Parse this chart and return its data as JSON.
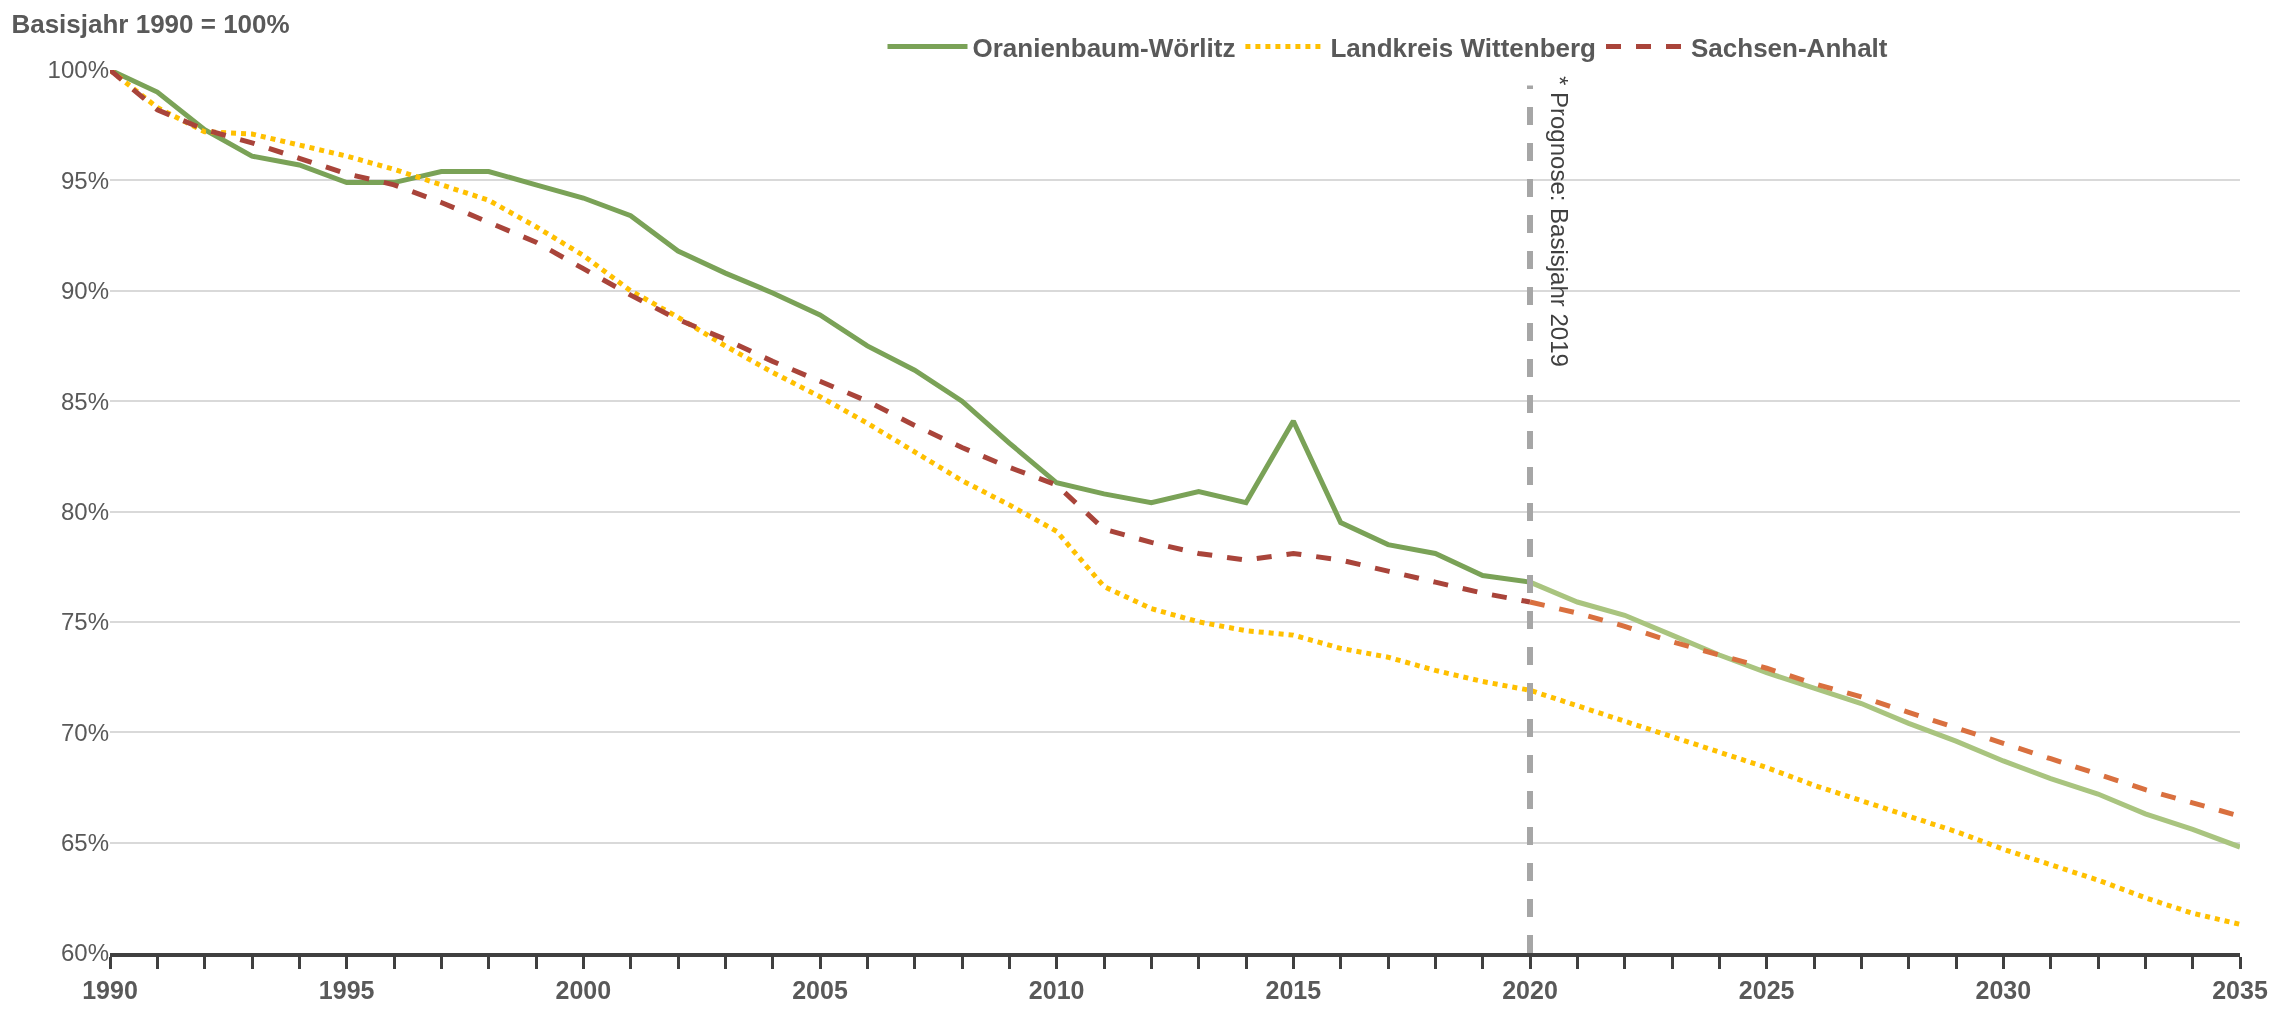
{
  "chart_data": {
    "type": "line",
    "title": "Basisjahr 1990 = 100%",
    "series": [
      {
        "name": "Oranienbaum-Wörlitz",
        "color": "#7aa257",
        "line_style": "solid",
        "x": [
          1990,
          1991,
          1992,
          1993,
          1994,
          1995,
          1996,
          1997,
          1998,
          1999,
          2000,
          2001,
          2002,
          2003,
          2004,
          2005,
          2006,
          2007,
          2008,
          2009,
          2010,
          2011,
          2012,
          2013,
          2014,
          2015,
          2016,
          2017,
          2018,
          2019,
          2020
        ],
        "values": [
          100,
          99.0,
          97.3,
          96.1,
          95.7,
          94.9,
          94.9,
          95.4,
          95.4,
          94.8,
          94.2,
          93.4,
          91.8,
          90.8,
          89.9,
          88.9,
          87.5,
          86.4,
          85.0,
          83.1,
          81.3,
          80.8,
          80.4,
          80.9,
          80.4,
          84.1,
          79.5,
          78.5,
          78.1,
          77.1,
          76.8
        ]
      },
      {
        "name": "Landkreis Wittenberg",
        "color": "#ffc000",
        "line_style": "dotted",
        "x": [
          1990,
          1991,
          1992,
          1993,
          1994,
          1995,
          1996,
          1997,
          1998,
          1999,
          2000,
          2001,
          2002,
          2003,
          2004,
          2005,
          2006,
          2007,
          2008,
          2009,
          2010,
          2011,
          2012,
          2013,
          2014,
          2015,
          2016,
          2017,
          2018,
          2019,
          2020,
          2021,
          2022,
          2023,
          2024,
          2025,
          2026,
          2027,
          2028,
          2029,
          2030,
          2031,
          2032,
          2033,
          2034,
          2035
        ],
        "values": [
          100,
          98.3,
          97.2,
          97.1,
          96.6,
          96.1,
          95.5,
          94.8,
          94.1,
          92.9,
          91.6,
          90.0,
          88.8,
          87.5,
          86.3,
          85.2,
          84.0,
          82.7,
          81.4,
          80.3,
          79.1,
          76.6,
          75.6,
          75.0,
          74.6,
          74.4,
          73.8,
          73.4,
          72.8,
          72.3,
          71.9,
          71.2,
          70.5,
          69.8,
          69.1,
          68.4,
          67.6,
          66.9,
          66.2,
          65.5,
          64.7,
          64.0,
          63.3,
          62.5,
          61.8,
          61.3
        ]
      },
      {
        "name": "Sachsen-Anhalt",
        "color": "#a9443a",
        "line_style": "dashed",
        "x": [
          1990,
          1991,
          1992,
          1993,
          1994,
          1995,
          1996,
          1997,
          1998,
          1999,
          2000,
          2001,
          2002,
          2003,
          2004,
          2005,
          2006,
          2007,
          2008,
          2009,
          2010,
          2011,
          2012,
          2013,
          2014,
          2015,
          2016,
          2017,
          2018,
          2019,
          2020
        ],
        "values": [
          100,
          98.2,
          97.3,
          96.7,
          96.0,
          95.3,
          94.8,
          94.0,
          93.1,
          92.2,
          91.0,
          89.8,
          88.7,
          87.8,
          86.8,
          85.9,
          85.0,
          83.9,
          82.9,
          82.0,
          81.2,
          79.2,
          78.6,
          78.1,
          77.8,
          78.1,
          77.8,
          77.3,
          76.8,
          76.3,
          75.9
        ]
      },
      {
        "color": "#a9c47f",
        "line_style": "solid",
        "x": [
          2020,
          2021,
          2022,
          2023,
          2024,
          2025,
          2026,
          2027,
          2028,
          2029,
          2030,
          2031,
          2032,
          2033,
          2034,
          2035
        ],
        "values": [
          76.8,
          75.9,
          75.3,
          74.4,
          73.5,
          72.7,
          72.0,
          71.3,
          70.4,
          69.6,
          68.7,
          67.9,
          67.2,
          66.3,
          65.6,
          64.8
        ]
      },
      {
        "color": "#d9703f",
        "line_style": "dashed",
        "x": [
          2020,
          2021,
          2022,
          2023,
          2024,
          2025,
          2026,
          2027,
          2028,
          2029,
          2030,
          2031,
          2032,
          2033,
          2034,
          2035
        ],
        "values": [
          75.9,
          75.4,
          74.8,
          74.1,
          73.5,
          72.9,
          72.2,
          71.6,
          70.9,
          70.2,
          69.5,
          68.8,
          68.1,
          67.4,
          66.8,
          66.2
        ]
      }
    ],
    "xlim": [
      1990,
      2035
    ],
    "xticks": [
      1990,
      {
        "value": 1991,
        "label": null
      },
      {
        "value": 1992,
        "label": null
      },
      {
        "value": 1993,
        "label": null
      },
      {
        "value": 1994,
        "label": null
      },
      1995,
      {
        "value": 1996,
        "label": null
      },
      {
        "value": 1997,
        "label": null
      },
      {
        "value": 1998,
        "label": null
      },
      {
        "value": 1999,
        "label": null
      },
      2000,
      {
        "value": 2001,
        "label": null
      },
      {
        "value": 2002,
        "label": null
      },
      {
        "value": 2003,
        "label": null
      },
      {
        "value": 2004,
        "label": null
      },
      2005,
      {
        "value": 2006,
        "label": null
      },
      {
        "value": 2007,
        "label": null
      },
      {
        "value": 2008,
        "label": null
      },
      {
        "value": 2009,
        "label": null
      },
      2010,
      {
        "value": 2011,
        "label": null
      },
      {
        "value": 2012,
        "label": null
      },
      {
        "value": 2013,
        "label": null
      },
      {
        "value": 2014,
        "label": null
      },
      2015,
      {
        "value": 2016,
        "label": null
      },
      {
        "value": 2017,
        "label": null
      },
      {
        "value": 2018,
        "label": null
      },
      {
        "value": 2019,
        "label": null
      },
      2020,
      {
        "value": 2021,
        "label": null
      },
      {
        "value": 2022,
        "label": null
      },
      {
        "value": 2023,
        "label": null
      },
      {
        "value": 2024,
        "label": null
      },
      2025,
      {
        "value": 2026,
        "label": null
      },
      {
        "value": 2027,
        "label": null
      },
      {
        "value": 2028,
        "label": null
      },
      {
        "value": 2029,
        "label": null
      },
      2030,
      {
        "value": 2031,
        "label": null
      },
      {
        "value": 2032,
        "label": null
      },
      {
        "value": 2033,
        "label": null
      },
      {
        "value": 2034,
        "label": null
      },
      2035
    ],
    "ylim": [
      60,
      100
    ],
    "yticks": [
      {
        "value": 60,
        "label": "60%"
      },
      {
        "value": 65,
        "label": "65%"
      },
      {
        "value": 70,
        "label": "70%"
      },
      {
        "value": 75,
        "label": "75%"
      },
      {
        "value": 80,
        "label": "80%"
      },
      {
        "value": 85,
        "label": "85%"
      },
      {
        "value": 90,
        "label": "90%"
      },
      {
        "value": 95,
        "label": "95%"
      },
      {
        "value": 100,
        "label": "100%"
      }
    ],
    "grid": "y",
    "legend": "top",
    "ref_lines": [
      {
        "axis": "x",
        "value": 2020,
        "label": "* Prognose: Basisjahr 2019",
        "color": "#a6a6a6",
        "line_style": "dashed"
      }
    ]
  }
}
